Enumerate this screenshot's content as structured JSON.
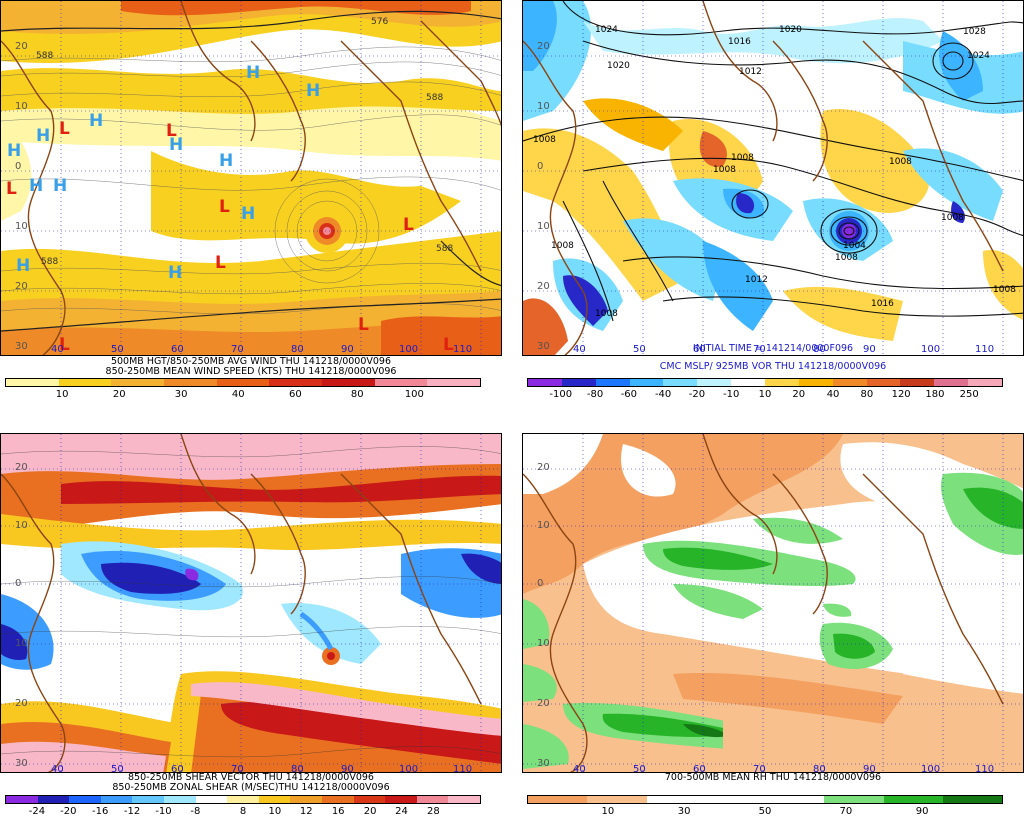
{
  "panels": [
    {
      "caption1": "500MB HGT/850-250MB AVG WIND THU 141218/0000V096",
      "caption2": "850-250MB MEAN WIND SPEED (KTS) THU 141218/0000V096",
      "colorbar_labels": [
        "10",
        "20",
        "30",
        "40",
        "60",
        "80",
        "100"
      ],
      "colorbar_colors": [
        "#fff6a8",
        "#f8d020",
        "#f4b232",
        "#ef8a28",
        "#e86018",
        "#d83018",
        "#c81818",
        "#f08898",
        "#f8b0c0"
      ],
      "contour_labels": [
        "576",
        "588",
        "588",
        "588",
        "588"
      ],
      "high_symbols": [
        "H",
        "H",
        "H",
        "H",
        "H",
        "H",
        "H",
        "H",
        "H",
        "H",
        "H",
        "H"
      ],
      "low_symbols": [
        "L",
        "L",
        "L",
        "L",
        "L",
        "L",
        "L",
        "L",
        "L"
      ],
      "lat_labels": [
        "20",
        "10",
        "0",
        "10",
        "20",
        "30"
      ],
      "lon_labels": [
        "40",
        "50",
        "60",
        "70",
        "80",
        "90",
        "100",
        "110"
      ]
    },
    {
      "caption1": "INITIAL TIME = 141214/0000F096",
      "caption2": "CMC MSLP/ 925MB VOR THU 141218/0000V096",
      "colorbar_labels": [
        "-100",
        "-80",
        "-60",
        "-40",
        "-20",
        "-10",
        "10",
        "20",
        "40",
        "80",
        "120",
        "180",
        "250"
      ],
      "colorbar_colors": [
        "#8a2be2",
        "#2828c8",
        "#1e78ff",
        "#3cb4ff",
        "#78dcff",
        "#bff2ff",
        "#ffffff",
        "#ffd54a",
        "#f8b400",
        "#f08a28",
        "#e4642a",
        "#c83c1e",
        "#e07090",
        "#f4a8b8"
      ],
      "isobar_labels": [
        "1024",
        "1016",
        "1020",
        "1028",
        "1024",
        "1020",
        "1012",
        "1008",
        "1008",
        "1008",
        "1008",
        "1008",
        "1004",
        "1008",
        "1012",
        "1016",
        "1008",
        "1008",
        "1008"
      ],
      "lat_labels": [
        "20",
        "10",
        "0",
        "10",
        "20",
        "30"
      ],
      "lon_labels": [
        "40",
        "50",
        "60",
        "70",
        "80",
        "90",
        "100",
        "110"
      ]
    },
    {
      "caption1": "850-250MB SHEAR VECTOR THU 141218/0000V096",
      "caption2": "850-250MB ZONAL SHEAR (M/SEC)THU 141218/0000V096",
      "colorbar_labels": [
        "-24",
        "-20",
        "-16",
        "-12",
        "-10",
        "-8",
        "8",
        "10",
        "12",
        "16",
        "20",
        "24",
        "28"
      ],
      "colorbar_colors": [
        "#8a2be2",
        "#2020b4",
        "#1e64ff",
        "#3c9cff",
        "#64c8ff",
        "#a0e8ff",
        "#ffffff",
        "#fff0a0",
        "#f8c820",
        "#f0a028",
        "#e87020",
        "#d83818",
        "#c81818",
        "#f08898",
        "#f8b8c8"
      ],
      "lat_labels": [
        "20",
        "10",
        "0",
        "10",
        "20",
        "30"
      ],
      "lon_labels": [
        "40",
        "50",
        "60",
        "70",
        "80",
        "90",
        "100",
        "110"
      ]
    },
    {
      "caption1": "700-500MB MEAN RH THU 141218/0000V096",
      "colorbar_labels": [
        "10",
        "30",
        "50",
        "70",
        "90"
      ],
      "colorbar_colors": [
        "#f4a060",
        "#f8c08c",
        "#ffffff",
        "#ffffff",
        "#ffffff",
        "#7ce07c",
        "#28b428",
        "#147814"
      ],
      "lat_labels": [
        "20",
        "10",
        "0",
        "10",
        "20",
        "30"
      ],
      "lon_labels": [
        "40",
        "50",
        "60",
        "70",
        "80",
        "90",
        "100",
        "110"
      ]
    }
  ]
}
